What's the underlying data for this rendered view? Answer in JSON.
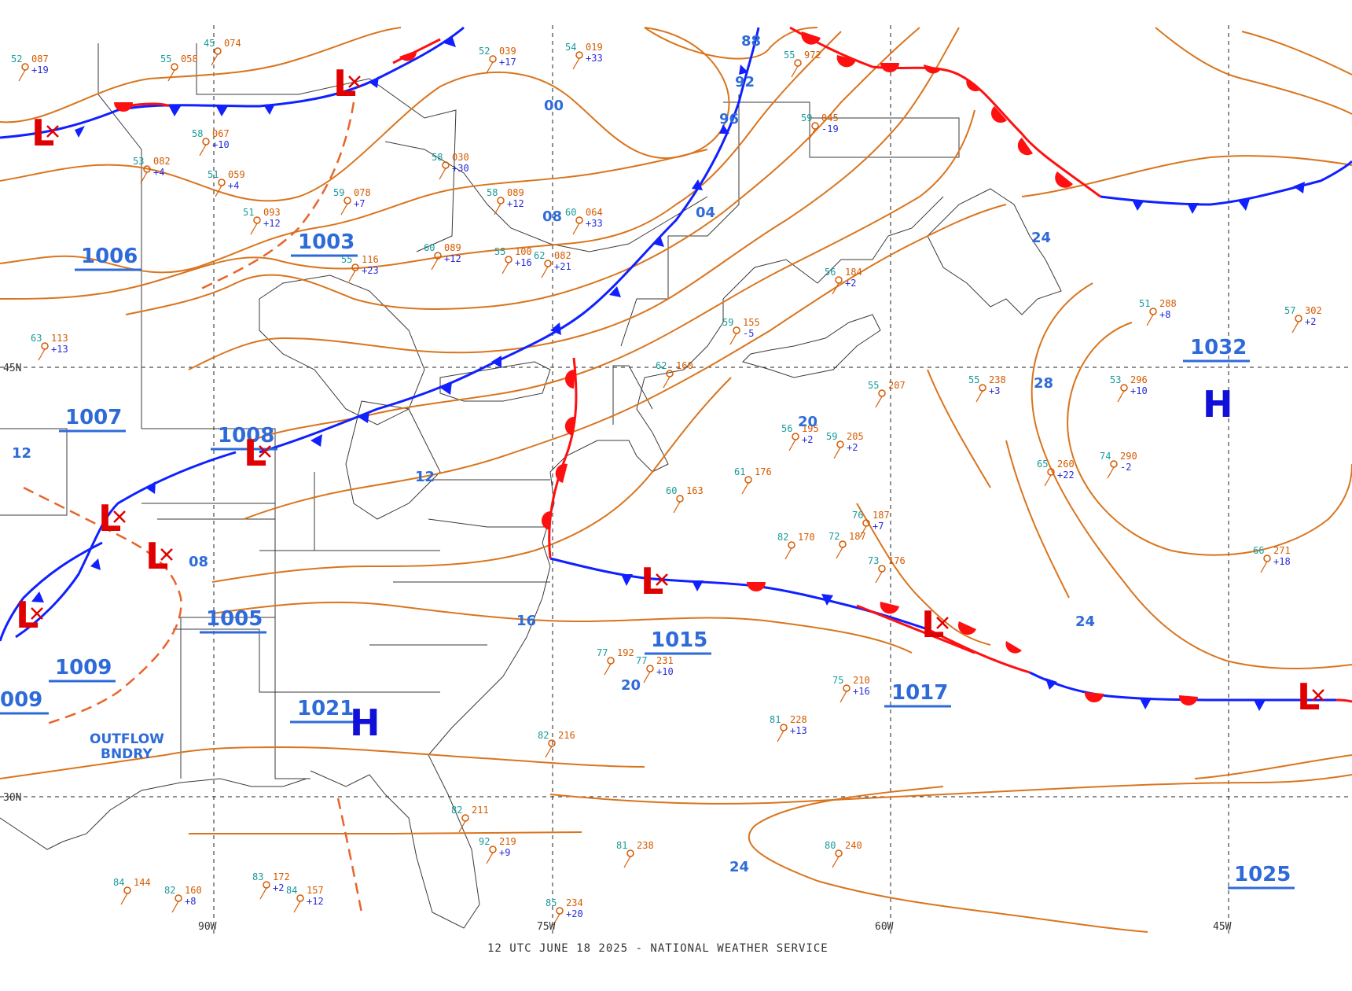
{
  "caption": "12 UTC JUNE 18 2025 - NATIONAL WEATHER SERVICE",
  "longitude_labels": [
    "90W",
    "75W",
    "60W",
    "45W"
  ],
  "latitude_labels": [
    "45N",
    "30N"
  ],
  "pressure_labels": [
    "1006",
    "1003",
    "1007",
    "1008",
    "1005",
    "1009",
    "009",
    "1021",
    "1015",
    "1017",
    "1032",
    "1025"
  ],
  "isobar_labels": [
    "88",
    "92",
    "96",
    "00",
    "04",
    "08",
    "12",
    "16",
    "20",
    "24",
    "28",
    "12",
    "08",
    "24",
    "20",
    "24"
  ],
  "outflow_label": [
    "OUTFLOW",
    "BNDRY"
  ],
  "centers": {
    "low_symbol": "L",
    "high_symbol": "H"
  },
  "stations": [
    {
      "t": "52",
      "td": "",
      "p": "087",
      "tend": "+19"
    },
    {
      "t": "55",
      "td": "",
      "p": "058",
      "tend": ""
    },
    {
      "t": "45",
      "td": "",
      "p": "074",
      "tend": ""
    },
    {
      "t": "52",
      "td": "",
      "p": "039",
      "tend": "+17"
    },
    {
      "t": "54",
      "td": "",
      "p": "019",
      "tend": "+33"
    },
    {
      "t": "55",
      "td": "",
      "p": "972",
      "tend": ""
    },
    {
      "t": "58",
      "td": "",
      "p": "067",
      "tend": "+10"
    },
    {
      "t": "53",
      "td": "",
      "p": "082",
      "tend": "+4"
    },
    {
      "t": "51",
      "td": "",
      "p": "059",
      "tend": "+4"
    },
    {
      "t": "58",
      "td": "",
      "p": "030",
      "tend": "+30"
    },
    {
      "t": "58",
      "td": "",
      "p": "089",
      "tend": "+12"
    },
    {
      "t": "59",
      "td": "",
      "p": "078",
      "tend": "+7"
    },
    {
      "t": "60",
      "td": "",
      "p": "064",
      "tend": "+33"
    },
    {
      "t": "51",
      "td": "",
      "p": "093",
      "tend": "+12"
    },
    {
      "t": "55",
      "td": "",
      "p": "116",
      "tend": "+23"
    },
    {
      "t": "60",
      "td": "",
      "p": "089",
      "tend": "+12"
    },
    {
      "t": "55",
      "td": "",
      "p": "100",
      "tend": "+16"
    },
    {
      "t": "62",
      "td": "",
      "p": "082",
      "tend": "+21"
    },
    {
      "t": "63",
      "td": "",
      "p": "113",
      "tend": "+13"
    },
    {
      "t": "62",
      "td": "",
      "p": "160",
      "tend": ""
    },
    {
      "t": "55",
      "td": "",
      "p": "238",
      "tend": "+3"
    },
    {
      "t": "53",
      "td": "",
      "p": "296",
      "tend": "+10"
    },
    {
      "t": "51",
      "td": "",
      "p": "288",
      "tend": "+8"
    },
    {
      "t": "57",
      "td": "",
      "p": "302",
      "tend": "+2"
    },
    {
      "t": "61",
      "td": "",
      "p": "176",
      "tend": ""
    },
    {
      "t": "65",
      "td": "",
      "p": "260",
      "tend": "+22"
    },
    {
      "t": "74",
      "td": "",
      "p": "290",
      "tend": "-2"
    },
    {
      "t": "60",
      "td": "",
      "p": "163",
      "tend": ""
    },
    {
      "t": "82",
      "td": "",
      "p": "170",
      "tend": ""
    },
    {
      "t": "72",
      "td": "",
      "p": "187",
      "tend": ""
    },
    {
      "t": "73",
      "td": "",
      "p": "176",
      "tend": ""
    },
    {
      "t": "77",
      "td": "",
      "p": "192",
      "tend": ""
    },
    {
      "t": "77",
      "td": "",
      "p": "231",
      "tend": "+10"
    },
    {
      "t": "75",
      "td": "",
      "p": "210",
      "tend": "+16"
    },
    {
      "t": "81",
      "td": "",
      "p": "228",
      "tend": "+13"
    },
    {
      "t": "82",
      "td": "",
      "p": "216",
      "tend": ""
    },
    {
      "t": "81",
      "td": "",
      "p": "238",
      "tend": ""
    },
    {
      "t": "80",
      "td": "",
      "p": "240",
      "tend": ""
    },
    {
      "t": "85",
      "td": "",
      "p": "234",
      "tend": "+20"
    },
    {
      "t": "92",
      "td": "",
      "p": "219",
      "tend": "+9"
    },
    {
      "t": "82",
      "td": "",
      "p": "211",
      "tend": ""
    },
    {
      "t": "84",
      "td": "",
      "p": "144",
      "tend": ""
    },
    {
      "t": "82",
      "td": "",
      "p": "160",
      "tend": "+8"
    },
    {
      "t": "84",
      "td": "",
      "p": "157",
      "tend": "+12"
    },
    {
      "t": "83",
      "td": "",
      "p": "172",
      "tend": "+2"
    },
    {
      "t": "76",
      "td": "",
      "p": "187",
      "tend": "+7"
    },
    {
      "t": "66",
      "td": "",
      "p": "271",
      "tend": "+18"
    },
    {
      "t": "56",
      "td": "",
      "p": "195",
      "tend": "+2"
    },
    {
      "t": "59",
      "td": "",
      "p": "205",
      "tend": "+2"
    },
    {
      "t": "55",
      "td": "",
      "p": "207",
      "tend": ""
    },
    {
      "t": "56",
      "td": "",
      "p": "184",
      "tend": "+2"
    },
    {
      "t": "59",
      "td": "",
      "p": "155",
      "tend": "-5"
    },
    {
      "t": "59",
      "td": "",
      "p": "045",
      "tend": "-19"
    }
  ]
}
